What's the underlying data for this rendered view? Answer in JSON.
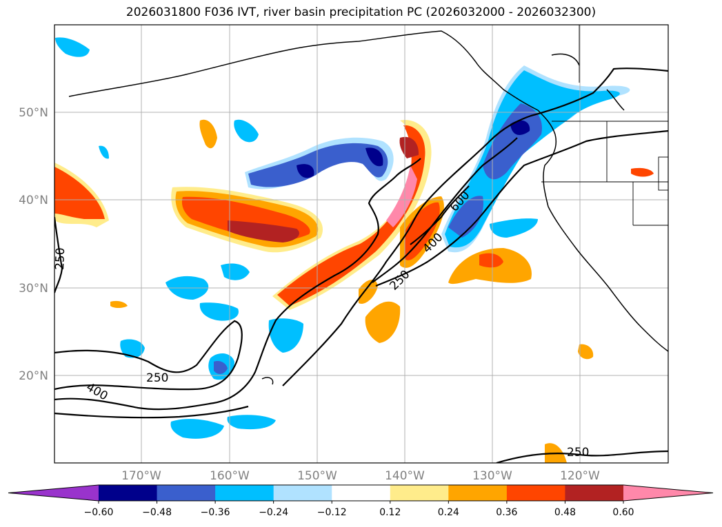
{
  "title": "2026031800 F036 IVT, river basin precipitation PC (2026032000 - 2026032300)",
  "lat_labels": [
    "50°N",
    "40°N",
    "30°N",
    "20°N"
  ],
  "lon_labels": [
    "170°W",
    "160°W",
    "150°W",
    "140°W",
    "130°W",
    "120°W"
  ],
  "colorbar": {
    "ticks": [
      "−0.60",
      "−0.48",
      "−0.36",
      "−0.24",
      "−0.12",
      "0.12",
      "0.24",
      "0.36",
      "0.48",
      "0.60"
    ],
    "colors": [
      "#9933cc",
      "#00008b",
      "#3a5fcd",
      "#00bfff",
      "#b0e2ff",
      "#ffffff",
      "#ffec8b",
      "#ffa500",
      "#ff4500",
      "#b22222",
      "#ff88aa"
    ]
  },
  "contour_labels": [
    "250",
    "400",
    "600",
    "250",
    "250",
    "400",
    "250"
  ]
}
